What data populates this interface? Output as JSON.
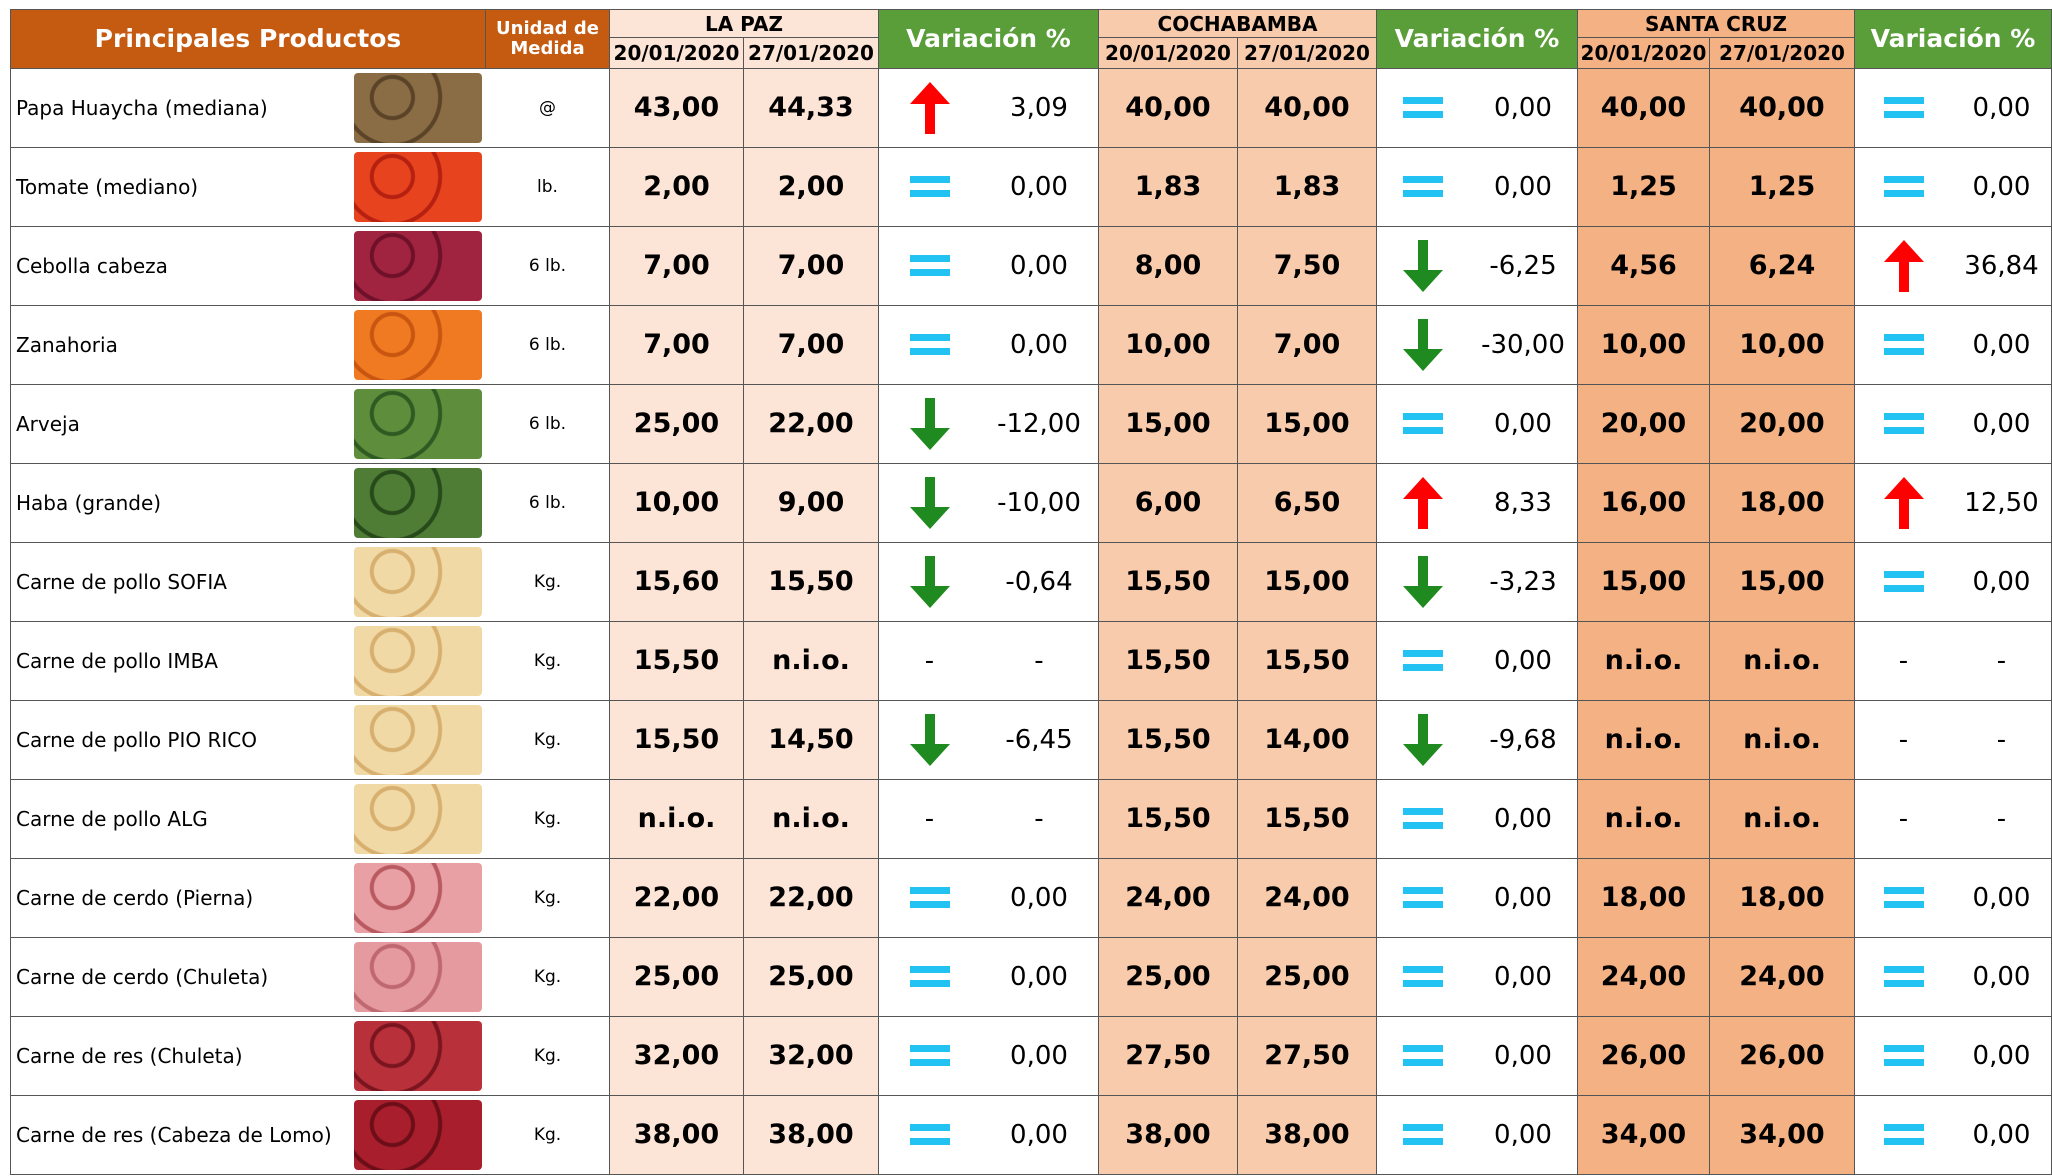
{
  "header": {
    "title": "Principales Productos",
    "unit": "Unidad de Medida",
    "regions": [
      {
        "name": "LA PAZ",
        "dates": [
          "20/01/2020",
          "27/01/2020"
        ],
        "variation": "Variación %"
      },
      {
        "name": "COCHABAMBA",
        "dates": [
          "20/01/2020",
          "27/01/2020"
        ],
        "variation": "Variación %"
      },
      {
        "name": "SANTA CRUZ",
        "dates": [
          "20/01/2020",
          "27/01/2020"
        ],
        "variation": "Variación %"
      }
    ]
  },
  "rows": [
    {
      "product": "Papa Huaycha (mediana)",
      "unit": "@",
      "markets": [
        [
          "43,00",
          "44,33",
          "3,09"
        ],
        [
          "40,00",
          "40,00",
          "0,00"
        ],
        [
          "40,00",
          "40,00",
          "0,00"
        ]
      ]
    },
    {
      "product": "Tomate (mediano)",
      "unit": "lb.",
      "markets": [
        [
          "2,00",
          "2,00",
          "0,00"
        ],
        [
          "1,83",
          "1,83",
          "0,00"
        ],
        [
          "1,25",
          "1,25",
          "0,00"
        ]
      ]
    },
    {
      "product": "Cebolla cabeza",
      "unit": "6 lb.",
      "markets": [
        [
          "7,00",
          "7,00",
          "0,00"
        ],
        [
          "8,00",
          "7,50",
          "-6,25"
        ],
        [
          "4,56",
          "6,24",
          "36,84"
        ]
      ]
    },
    {
      "product": "Zanahoria",
      "unit": "6 lb.",
      "markets": [
        [
          "7,00",
          "7,00",
          "0,00"
        ],
        [
          "10,00",
          "7,00",
          "-30,00"
        ],
        [
          "10,00",
          "10,00",
          "0,00"
        ]
      ]
    },
    {
      "product": "Arveja",
      "unit": "6 lb.",
      "markets": [
        [
          "25,00",
          "22,00",
          "-12,00"
        ],
        [
          "15,00",
          "15,00",
          "0,00"
        ],
        [
          "20,00",
          "20,00",
          "0,00"
        ]
      ]
    },
    {
      "product": "Haba (grande)",
      "unit": "6 lb.",
      "markets": [
        [
          "10,00",
          "9,00",
          "-10,00"
        ],
        [
          "6,00",
          "6,50",
          "8,33"
        ],
        [
          "16,00",
          "18,00",
          "12,50"
        ]
      ]
    },
    {
      "product": "Carne de pollo SOFIA",
      "unit": "Kg.",
      "markets": [
        [
          "15,60",
          "15,50",
          "-0,64"
        ],
        [
          "15,50",
          "15,00",
          "-3,23"
        ],
        [
          "15,00",
          "15,00",
          "0,00"
        ]
      ]
    },
    {
      "product": "Carne de pollo IMBA",
      "unit": "Kg.",
      "markets": [
        [
          "15,50",
          "n.i.o.",
          "-"
        ],
        [
          "15,50",
          "15,50",
          "0,00"
        ],
        [
          "n.i.o.",
          "n.i.o.",
          "-"
        ]
      ]
    },
    {
      "product": "Carne de pollo PIO RICO",
      "unit": "Kg.",
      "markets": [
        [
          "15,50",
          "14,50",
          "-6,45"
        ],
        [
          "15,50",
          "14,00",
          "-9,68"
        ],
        [
          "n.i.o.",
          "n.i.o.",
          "-"
        ]
      ]
    },
    {
      "product": "Carne de pollo ALG",
      "unit": "Kg.",
      "markets": [
        [
          "n.i.o.",
          "n.i.o.",
          "-"
        ],
        [
          "15,50",
          "15,50",
          "0,00"
        ],
        [
          "n.i.o.",
          "n.i.o.",
          "-"
        ]
      ]
    },
    {
      "product": "Carne de cerdo (Pierna)",
      "unit": "Kg.",
      "markets": [
        [
          "22,00",
          "22,00",
          "0,00"
        ],
        [
          "24,00",
          "24,00",
          "0,00"
        ],
        [
          "18,00",
          "18,00",
          "0,00"
        ]
      ]
    },
    {
      "product": "Carne de cerdo (Chuleta)",
      "unit": "Kg.",
      "markets": [
        [
          "25,00",
          "25,00",
          "0,00"
        ],
        [
          "25,00",
          "25,00",
          "0,00"
        ],
        [
          "24,00",
          "24,00",
          "0,00"
        ]
      ]
    },
    {
      "product": "Carne de res (Chuleta)",
      "unit": "Kg.",
      "markets": [
        [
          "32,00",
          "32,00",
          "0,00"
        ],
        [
          "27,50",
          "27,50",
          "0,00"
        ],
        [
          "26,00",
          "26,00",
          "0,00"
        ]
      ]
    },
    {
      "product": "Carne de res (Cabeza de Lomo)",
      "unit": "Kg.",
      "markets": [
        [
          "38,00",
          "38,00",
          "0,00"
        ],
        [
          "38,00",
          "38,00",
          "0,00"
        ],
        [
          "34,00",
          "34,00",
          "0,00"
        ]
      ]
    }
  ]
}
